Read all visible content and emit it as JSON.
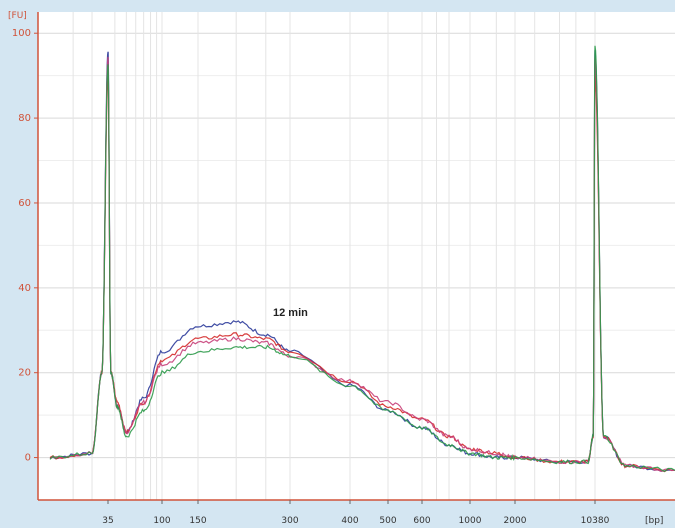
{
  "chart_data": {
    "type": "line",
    "title": "",
    "ylabel_unit": "[FU]",
    "xlabel_unit": "[bp]",
    "annotation": "12 min",
    "ylim": [
      -10,
      105
    ],
    "y_ticks": [
      0,
      20,
      40,
      60,
      80,
      100
    ],
    "x_ticks": [
      "35",
      "100",
      "150",
      "300",
      "400",
      "500",
      "600",
      "1000",
      "2000",
      "10380"
    ],
    "x_scale": "log (electropherogram sizing)",
    "grid": true,
    "legend": "none",
    "colors": {
      "blue": "#2b3a9a",
      "red": "#d42a2a",
      "pink": "#c8407a",
      "green": "#2e9a4a",
      "axis": "#d0533a"
    },
    "series": [
      {
        "color": "blue",
        "x": [
          20,
          30,
          33,
          35,
          37,
          42,
          50,
          70,
          100,
          150,
          200,
          250,
          300,
          400,
          500,
          600,
          800,
          1000,
          1500,
          2000,
          5000,
          9000,
          10000,
          10380,
          10800,
          12000,
          15000
        ],
        "y": [
          0,
          1,
          20,
          96,
          20,
          12,
          6,
          14,
          25,
          31,
          32,
          29,
          25,
          17,
          11,
          7,
          3,
          1,
          0,
          0,
          -1,
          -1,
          5,
          96,
          5,
          -2,
          -3
        ]
      },
      {
        "color": "red",
        "x": [
          20,
          30,
          33,
          35,
          37,
          42,
          50,
          70,
          100,
          150,
          200,
          250,
          300,
          400,
          500,
          600,
          800,
          1000,
          1500,
          2000,
          5000,
          9000,
          10000,
          10380,
          10800,
          12000,
          15000
        ],
        "y": [
          0,
          1,
          20,
          90,
          20,
          13,
          6,
          13,
          23,
          28,
          29,
          28,
          25,
          18,
          12,
          9,
          5,
          2,
          1,
          0,
          -1,
          -1,
          5,
          90,
          5,
          -2,
          -3
        ]
      },
      {
        "color": "pink",
        "x": [
          20,
          30,
          33,
          35,
          37,
          42,
          50,
          70,
          100,
          150,
          200,
          250,
          300,
          400,
          500,
          600,
          800,
          1000,
          1500,
          2000,
          5000,
          9000,
          10000,
          10380,
          10800,
          12000,
          15000
        ],
        "y": [
          0,
          1,
          20,
          94,
          20,
          12,
          6,
          13,
          22,
          27,
          28,
          27,
          24,
          18,
          13,
          9,
          5,
          2,
          1,
          0,
          -1,
          -1,
          5,
          94,
          5,
          -2,
          -3
        ]
      },
      {
        "color": "green",
        "x": [
          20,
          30,
          33,
          35,
          37,
          42,
          50,
          70,
          100,
          150,
          200,
          250,
          300,
          400,
          500,
          600,
          800,
          1000,
          1500,
          2000,
          5000,
          9000,
          10000,
          10380,
          10800,
          12000,
          15000
        ],
        "y": [
          0,
          1,
          20,
          93,
          20,
          12,
          5,
          11,
          20,
          25,
          26,
          26,
          24,
          17,
          11,
          7,
          3,
          1,
          0,
          0,
          -1,
          -1,
          5,
          97,
          5,
          -2,
          -3
        ]
      }
    ]
  }
}
